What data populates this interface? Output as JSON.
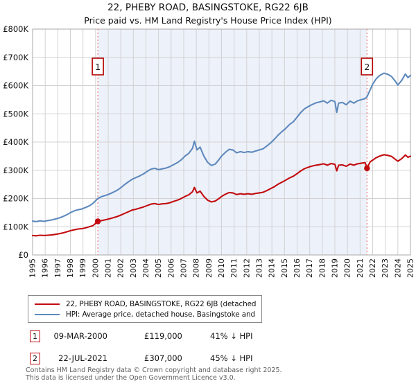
{
  "title": "22, PHEBY ROAD, BASINGSTOKE, RG22 6JB",
  "subtitle": "Price paid vs. HM Land Registry's House Price Index (HPI)",
  "colors": {
    "price_red": "#c20a0e",
    "hpi_blue": "#5d89bd",
    "dashed_marker": "#ec8383",
    "band_fill": "#edf1fa",
    "grid": "#d2d2d2",
    "plot_border": "#a8a8a8"
  },
  "chart_data": {
    "type": "line",
    "unit": "GBP thousands",
    "xlim": [
      1995,
      2025
    ],
    "ylim_k": [
      0,
      800
    ],
    "grid": true,
    "legend_position": "below",
    "y_tick_labels": [
      "£0",
      "£100K",
      "£200K",
      "£300K",
      "£400K",
      "£500K",
      "£600K",
      "£700K",
      "£800K"
    ],
    "x_tick_years": [
      1995,
      1996,
      1997,
      1998,
      1999,
      2000,
      2001,
      2002,
      2003,
      2004,
      2005,
      2006,
      2007,
      2008,
      2009,
      2010,
      2011,
      2012,
      2013,
      2014,
      2015,
      2016,
      2017,
      2018,
      2019,
      2020,
      2021,
      2022,
      2023,
      2024,
      2025
    ],
    "band": {
      "from": 2000.18,
      "to": 2021.55
    },
    "series": [
      {
        "name": "22, PHEBY ROAD, BASINGSTOKE, RG22 6JB (detached house)",
        "color": "#c20a0e",
        "points": [
          [
            1995.0,
            69
          ],
          [
            1995.3,
            68
          ],
          [
            1995.6,
            70
          ],
          [
            1995.9,
            69
          ],
          [
            1996.2,
            70
          ],
          [
            1996.5,
            71
          ],
          [
            1996.8,
            73
          ],
          [
            1997.1,
            75
          ],
          [
            1997.4,
            78
          ],
          [
            1997.7,
            82
          ],
          [
            1998.0,
            86
          ],
          [
            1998.3,
            89
          ],
          [
            1998.6,
            92
          ],
          [
            1998.9,
            93
          ],
          [
            1999.2,
            96
          ],
          [
            1999.5,
            100
          ],
          [
            1999.8,
            104
          ],
          [
            2000.18,
            119
          ],
          [
            2000.5,
            122
          ],
          [
            2000.8,
            125
          ],
          [
            2001.1,
            128
          ],
          [
            2001.4,
            132
          ],
          [
            2001.7,
            136
          ],
          [
            2002.0,
            141
          ],
          [
            2002.3,
            147
          ],
          [
            2002.6,
            153
          ],
          [
            2002.9,
            159
          ],
          [
            2003.2,
            162
          ],
          [
            2003.5,
            166
          ],
          [
            2003.8,
            170
          ],
          [
            2004.1,
            175
          ],
          [
            2004.4,
            180
          ],
          [
            2004.7,
            182
          ],
          [
            2005.0,
            179
          ],
          [
            2005.3,
            181
          ],
          [
            2005.6,
            182
          ],
          [
            2005.9,
            185
          ],
          [
            2006.2,
            190
          ],
          [
            2006.5,
            194
          ],
          [
            2006.8,
            200
          ],
          [
            2007.1,
            207
          ],
          [
            2007.4,
            213
          ],
          [
            2007.7,
            224
          ],
          [
            2007.85,
            239
          ],
          [
            2008.05,
            220
          ],
          [
            2008.3,
            226
          ],
          [
            2008.6,
            207
          ],
          [
            2008.9,
            194
          ],
          [
            2009.2,
            188
          ],
          [
            2009.5,
            191
          ],
          [
            2009.8,
            200
          ],
          [
            2010.0,
            207
          ],
          [
            2010.3,
            215
          ],
          [
            2010.6,
            221
          ],
          [
            2010.9,
            220
          ],
          [
            2011.2,
            214
          ],
          [
            2011.5,
            217
          ],
          [
            2011.8,
            215
          ],
          [
            2012.1,
            217
          ],
          [
            2012.4,
            215
          ],
          [
            2012.7,
            218
          ],
          [
            2013.0,
            220
          ],
          [
            2013.3,
            222
          ],
          [
            2013.6,
            228
          ],
          [
            2013.9,
            235
          ],
          [
            2014.2,
            242
          ],
          [
            2014.5,
            251
          ],
          [
            2014.8,
            258
          ],
          [
            2015.1,
            265
          ],
          [
            2015.4,
            273
          ],
          [
            2015.7,
            279
          ],
          [
            2016.0,
            288
          ],
          [
            2016.3,
            298
          ],
          [
            2016.6,
            306
          ],
          [
            2016.9,
            311
          ],
          [
            2017.2,
            315
          ],
          [
            2017.5,
            318
          ],
          [
            2017.8,
            320
          ],
          [
            2018.1,
            323
          ],
          [
            2018.4,
            318
          ],
          [
            2018.7,
            324
          ],
          [
            2019.0,
            321
          ],
          [
            2019.15,
            298
          ],
          [
            2019.3,
            318
          ],
          [
            2019.6,
            319
          ],
          [
            2019.9,
            314
          ],
          [
            2020.2,
            322
          ],
          [
            2020.5,
            318
          ],
          [
            2020.8,
            323
          ],
          [
            2021.1,
            325
          ],
          [
            2021.4,
            327
          ],
          [
            2021.55,
            307
          ],
          [
            2021.8,
            330
          ],
          [
            2022.0,
            336
          ],
          [
            2022.3,
            345
          ],
          [
            2022.6,
            351
          ],
          [
            2022.9,
            355
          ],
          [
            2023.2,
            353
          ],
          [
            2023.5,
            349
          ],
          [
            2023.8,
            339
          ],
          [
            2024.0,
            332
          ],
          [
            2024.3,
            341
          ],
          [
            2024.6,
            354
          ],
          [
            2024.8,
            346
          ],
          [
            2025.0,
            350
          ]
        ]
      },
      {
        "name": "HPI: Average price, detached house, Basingstoke and Deane",
        "color": "#5d89bd",
        "points": [
          [
            1995.0,
            120
          ],
          [
            1995.3,
            118
          ],
          [
            1995.6,
            121
          ],
          [
            1995.9,
            119
          ],
          [
            1996.2,
            122
          ],
          [
            1996.5,
            124
          ],
          [
            1996.8,
            127
          ],
          [
            1997.1,
            131
          ],
          [
            1997.4,
            136
          ],
          [
            1997.7,
            142
          ],
          [
            1998.0,
            150
          ],
          [
            1998.3,
            156
          ],
          [
            1998.6,
            160
          ],
          [
            1998.9,
            163
          ],
          [
            1999.2,
            168
          ],
          [
            1999.5,
            174
          ],
          [
            1999.8,
            183
          ],
          [
            2000.18,
            200
          ],
          [
            2000.5,
            207
          ],
          [
            2000.8,
            211
          ],
          [
            2001.1,
            216
          ],
          [
            2001.4,
            222
          ],
          [
            2001.7,
            229
          ],
          [
            2002.0,
            238
          ],
          [
            2002.3,
            249
          ],
          [
            2002.6,
            259
          ],
          [
            2002.9,
            268
          ],
          [
            2003.2,
            274
          ],
          [
            2003.5,
            280
          ],
          [
            2003.8,
            287
          ],
          [
            2004.1,
            296
          ],
          [
            2004.4,
            304
          ],
          [
            2004.7,
            307
          ],
          [
            2005.0,
            302
          ],
          [
            2005.3,
            305
          ],
          [
            2005.6,
            308
          ],
          [
            2005.9,
            313
          ],
          [
            2006.2,
            320
          ],
          [
            2006.5,
            327
          ],
          [
            2006.8,
            337
          ],
          [
            2007.1,
            350
          ],
          [
            2007.4,
            360
          ],
          [
            2007.7,
            378
          ],
          [
            2007.85,
            403
          ],
          [
            2008.05,
            372
          ],
          [
            2008.3,
            382
          ],
          [
            2008.6,
            350
          ],
          [
            2008.9,
            328
          ],
          [
            2009.2,
            317
          ],
          [
            2009.5,
            322
          ],
          [
            2009.8,
            338
          ],
          [
            2010.0,
            350
          ],
          [
            2010.3,
            363
          ],
          [
            2010.6,
            374
          ],
          [
            2010.9,
            372
          ],
          [
            2011.2,
            362
          ],
          [
            2011.5,
            366
          ],
          [
            2011.8,
            363
          ],
          [
            2012.1,
            366
          ],
          [
            2012.4,
            364
          ],
          [
            2012.7,
            368
          ],
          [
            2013.0,
            372
          ],
          [
            2013.3,
            376
          ],
          [
            2013.6,
            386
          ],
          [
            2013.9,
            397
          ],
          [
            2014.2,
            410
          ],
          [
            2014.5,
            425
          ],
          [
            2014.8,
            437
          ],
          [
            2015.1,
            448
          ],
          [
            2015.4,
            462
          ],
          [
            2015.7,
            472
          ],
          [
            2016.0,
            488
          ],
          [
            2016.3,
            505
          ],
          [
            2016.6,
            518
          ],
          [
            2016.9,
            526
          ],
          [
            2017.2,
            533
          ],
          [
            2017.5,
            539
          ],
          [
            2017.8,
            542
          ],
          [
            2018.1,
            546
          ],
          [
            2018.4,
            538
          ],
          [
            2018.7,
            548
          ],
          [
            2019.0,
            543
          ],
          [
            2019.15,
            505
          ],
          [
            2019.3,
            538
          ],
          [
            2019.6,
            540
          ],
          [
            2019.9,
            532
          ],
          [
            2020.2,
            545
          ],
          [
            2020.5,
            538
          ],
          [
            2020.8,
            546
          ],
          [
            2021.1,
            550
          ],
          [
            2021.4,
            554
          ],
          [
            2021.55,
            560
          ],
          [
            2021.8,
            585
          ],
          [
            2022.0,
            605
          ],
          [
            2022.3,
            625
          ],
          [
            2022.6,
            637
          ],
          [
            2022.9,
            644
          ],
          [
            2023.2,
            640
          ],
          [
            2023.5,
            632
          ],
          [
            2023.8,
            615
          ],
          [
            2024.0,
            602
          ],
          [
            2024.3,
            618
          ],
          [
            2024.6,
            641
          ],
          [
            2024.8,
            628
          ],
          [
            2025.0,
            636
          ]
        ]
      }
    ],
    "sales": [
      {
        "num": "1",
        "date": "09-MAR-2000",
        "year": 2000.18,
        "price_k": 119,
        "price": "£119,000",
        "hpi_diff": "41% ↓ HPI"
      },
      {
        "num": "2",
        "date": "22-JUL-2021",
        "year": 2021.55,
        "price_k": 307,
        "price": "£307,000",
        "hpi_diff": "45% ↓ HPI"
      }
    ]
  },
  "footer": {
    "line1": "Contains HM Land Registry data © Crown copyright and database right 2025.",
    "line2": "This data is licensed under the Open Government Licence v3.0."
  }
}
